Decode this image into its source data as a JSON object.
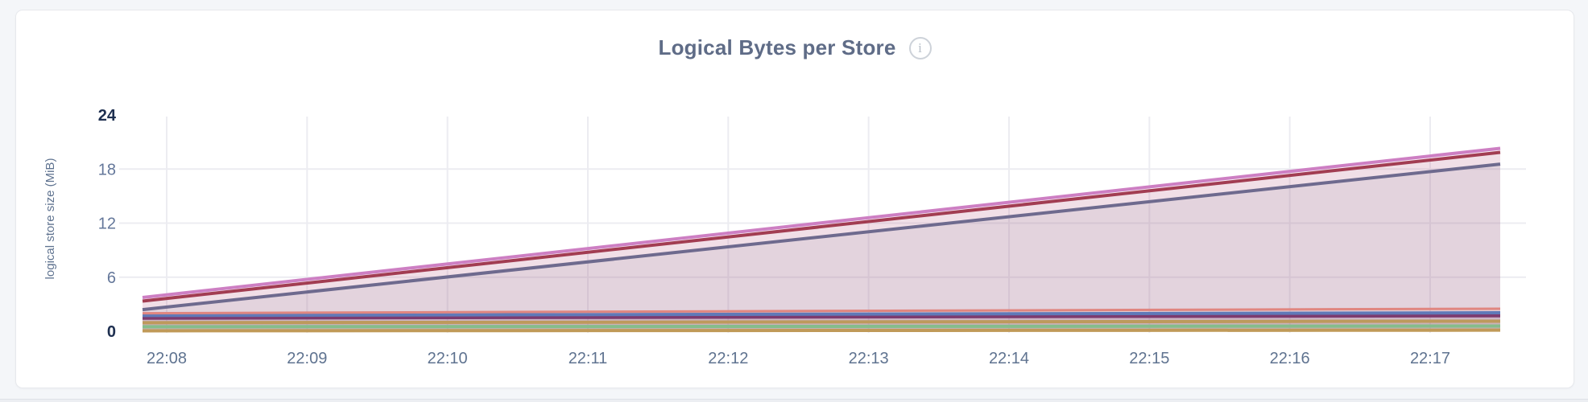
{
  "header": {
    "title": "Logical Bytes per Store",
    "info_icon_glyph": "i"
  },
  "colors": {
    "page_background": "#f4f6f9",
    "card_background": "#ffffff",
    "card_border": "#e7e9ed",
    "title_text": "#5f6c87",
    "grid": "#ececf1",
    "tick_label": "#64779a",
    "tick_label_emphasis": "#1e2f50",
    "x_label": "#5f7390"
  },
  "chart_data": {
    "type": "area",
    "title": "Logical Bytes per Store",
    "xlabel": "",
    "ylabel": "logical store size (MiB)",
    "ylim": [
      0,
      24
    ],
    "yticks": [
      0,
      6,
      12,
      18,
      24
    ],
    "ytick_emphasis": [
      0,
      24
    ],
    "xticks": [
      "22:08",
      "22:09",
      "22:10",
      "22:11",
      "22:12",
      "22:13",
      "22:14",
      "22:15",
      "22:16",
      "22:17"
    ],
    "x_start": "22:07:50",
    "x_end": "22:17:30",
    "grid": true,
    "legend_position": "none",
    "fill_opacity": 0.1,
    "series": [
      {
        "id": "series-1",
        "color": "#cd7fc3",
        "values": [
          3.75,
          20.3
        ],
        "width": 4
      },
      {
        "id": "series-2",
        "color": "#a23d52",
        "values": [
          3.35,
          19.85
        ],
        "width": 4
      },
      {
        "id": "series-3",
        "color": "#6e6a8e",
        "values": [
          2.4,
          18.55
        ],
        "width": 4
      },
      {
        "id": "series-4",
        "color": "#e08680",
        "values": [
          2.0,
          2.5
        ],
        "width": 3
      },
      {
        "id": "series-5",
        "color": "#6079b8",
        "values": [
          1.75,
          2.05
        ],
        "width": 4
      },
      {
        "id": "series-6",
        "color": "#7d3b6f",
        "values": [
          1.45,
          1.72
        ],
        "width": 4
      },
      {
        "id": "series-7",
        "color": "#bd9a5c",
        "values": [
          0.95,
          1.12
        ],
        "width": 4
      },
      {
        "id": "series-8",
        "color": "#85bd8b",
        "values": [
          0.5,
          0.58
        ],
        "width": 4
      },
      {
        "id": "series-9",
        "color": "#c09a58",
        "values": [
          0.05,
          0.12
        ],
        "width": 4
      }
    ]
  }
}
